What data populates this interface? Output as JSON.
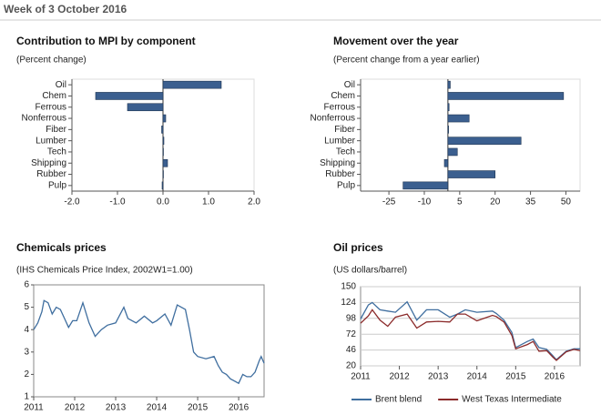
{
  "header": {
    "title": "Week of 3 October 2016"
  },
  "chart_data": [
    {
      "type": "hbar",
      "title": "Contribution to MPI by component",
      "subtitle": "(Percent change)",
      "categories": [
        "Oil",
        "Chem",
        "Ferrous",
        "Nonferrous",
        "Fiber",
        "Lumber",
        "Tech",
        "Shipping",
        "Rubber",
        "Pulp"
      ],
      "values": [
        1.28,
        -1.48,
        -0.78,
        0.06,
        -0.03,
        0.02,
        0.01,
        0.1,
        0.01,
        -0.02
      ],
      "color": "#3b5f8f",
      "xlim": [
        -2,
        2
      ],
      "xticks": [
        {
          "value": -2,
          "label": "-2.0"
        },
        {
          "value": -1,
          "label": "-1.0"
        },
        {
          "value": 0,
          "label": "0.0"
        },
        {
          "value": 1,
          "label": "1.0"
        },
        {
          "value": 2,
          "label": "2.0"
        }
      ]
    },
    {
      "type": "hbar",
      "title": "Movement over the year",
      "subtitle": "(Percent change from a year earlier)",
      "categories": [
        "Oil",
        "Chem",
        "Ferrous",
        "Nonferrous",
        "Fiber",
        "Lumber",
        "Tech",
        "Shipping",
        "Rubber",
        "Pulp"
      ],
      "values": [
        1,
        49,
        0.5,
        9,
        0.3,
        31,
        4,
        -1.5,
        20,
        -19
      ],
      "color": "#3b5f8f",
      "xlim": [
        -37,
        56
      ],
      "xticks": [
        -25,
        -10,
        5,
        20,
        35,
        50
      ]
    },
    {
      "type": "line",
      "title": "Chemicals prices",
      "subtitle": "(IHS Chemicals Price Index, 2002W1=1.00)",
      "x": [
        2011.0,
        2011.1,
        2011.2,
        2011.25,
        2011.35,
        2011.45,
        2011.55,
        2011.65,
        2011.75,
        2011.85,
        2011.95,
        2012.05,
        2012.2,
        2012.35,
        2012.5,
        2012.65,
        2012.8,
        2013.0,
        2013.2,
        2013.3,
        2013.5,
        2013.7,
        2013.9,
        2014.0,
        2014.2,
        2014.35,
        2014.5,
        2014.7,
        2014.8,
        2014.9,
        2015.0,
        2015.2,
        2015.4,
        2015.5,
        2015.6,
        2015.7,
        2015.8,
        2016.0,
        2016.1,
        2016.2,
        2016.3,
        2016.4,
        2016.5,
        2016.55,
        2016.62
      ],
      "series": [
        {
          "name": "Chemicals",
          "color": "#3f6e9f",
          "values": [
            4.0,
            4.3,
            4.8,
            5.3,
            5.2,
            4.7,
            5.0,
            4.9,
            4.5,
            4.1,
            4.4,
            4.4,
            5.2,
            4.3,
            3.7,
            4.0,
            4.2,
            4.3,
            5.0,
            4.5,
            4.3,
            4.6,
            4.3,
            4.4,
            4.7,
            4.2,
            5.1,
            4.9,
            4.0,
            3.0,
            2.8,
            2.7,
            2.8,
            2.4,
            2.1,
            2.0,
            1.8,
            1.6,
            2.0,
            1.9,
            1.9,
            2.1,
            2.6,
            2.8,
            2.5
          ]
        }
      ],
      "xlim": [
        2011,
        2016.62
      ],
      "xticks": [
        2011,
        2012,
        2013,
        2014,
        2015,
        2016
      ],
      "ylim": [
        1,
        6
      ],
      "yticks": [
        1,
        2,
        3,
        4,
        5,
        6
      ],
      "grid": false
    },
    {
      "type": "line",
      "title": "Oil prices",
      "subtitle": "(US dollars/barrel)",
      "x": [
        2011.0,
        2011.2,
        2011.3,
        2011.5,
        2011.7,
        2011.9,
        2012.2,
        2012.45,
        2012.7,
        2013.0,
        2013.3,
        2013.5,
        2013.7,
        2014.0,
        2014.4,
        2014.5,
        2014.7,
        2014.9,
        2015.0,
        2015.3,
        2015.45,
        2015.6,
        2015.8,
        2015.95,
        2016.05,
        2016.3,
        2016.5,
        2016.66
      ],
      "series": [
        {
          "name": "Brent blend",
          "color": "#3f6e9f",
          "values": [
            97,
            120,
            124,
            112,
            110,
            108,
            125,
            95,
            112,
            112,
            100,
            105,
            112,
            108,
            110,
            106,
            95,
            75,
            50,
            60,
            64,
            50,
            47,
            37,
            30,
            44,
            48,
            48
          ]
        },
        {
          "name": "West Texas Intermediate",
          "color": "#8b2a2a",
          "values": [
            90,
            102,
            112,
            95,
            85,
            100,
            105,
            82,
            92,
            93,
            92,
            105,
            105,
            94,
            103,
            101,
            92,
            70,
            48,
            55,
            60,
            44,
            45,
            35,
            29,
            43,
            47,
            45
          ]
        }
      ],
      "xlim": [
        2011,
        2016.66
      ],
      "xticks": [
        2011,
        2012,
        2013,
        2014,
        2015,
        2016
      ],
      "ylim": [
        20,
        150
      ],
      "yticks": [
        20,
        46,
        72,
        98,
        124,
        150
      ],
      "grid": true,
      "legend": "bottom"
    }
  ]
}
